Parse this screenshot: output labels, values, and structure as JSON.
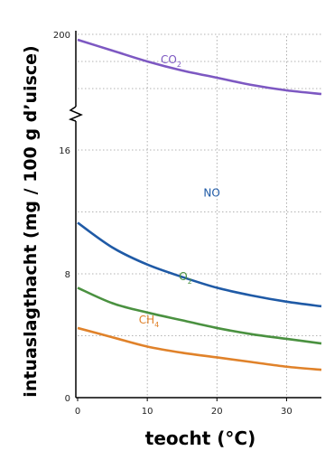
{
  "chart_data": {
    "type": "line",
    "xlabel": "teocht (°C)",
    "ylabel": "intuaslagthacht (mg / 100 g d’uisce)",
    "xlim": [
      0,
      35
    ],
    "x_ticks": [
      "0",
      "10",
      "20",
      "30"
    ],
    "y_ticks": [
      "0",
      "8",
      "16",
      "200"
    ],
    "y_axis_break": "between 16 and 200",
    "grid": "dotted",
    "series": [
      {
        "name": "CO",
        "name_sub": "2",
        "color": "#7d58c2",
        "x": [
          0,
          5,
          10,
          15,
          20,
          25,
          30,
          35
        ],
        "y": [
          197,
          191,
          185,
          180,
          176,
          172,
          169,
          167
        ]
      },
      {
        "name": "NO",
        "color": "#1f5aa6",
        "x": [
          0,
          5,
          10,
          15,
          20,
          25,
          30,
          35
        ],
        "y": [
          11.3,
          9.7,
          8.6,
          7.8,
          7.1,
          6.6,
          6.2,
          5.9
        ]
      },
      {
        "name": "O",
        "name_sub": "2",
        "color": "#4a9140",
        "x": [
          0,
          5,
          10,
          15,
          20,
          25,
          30,
          35
        ],
        "y": [
          7.1,
          6.1,
          5.5,
          5.0,
          4.5,
          4.1,
          3.8,
          3.5
        ]
      },
      {
        "name": "CH",
        "name_sub": "4",
        "color": "#e0822a",
        "x": [
          0,
          5,
          10,
          15,
          20,
          25,
          30,
          35
        ],
        "y": [
          4.5,
          3.9,
          3.3,
          2.9,
          2.6,
          2.3,
          2.0,
          1.8
        ]
      }
    ]
  }
}
